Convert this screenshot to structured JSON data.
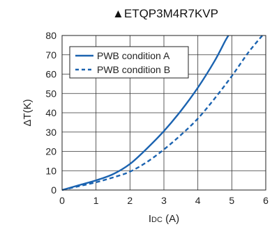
{
  "chart_data": {
    "type": "line",
    "title": "▲ETQP3M4R7KVP",
    "xlabel": "IDC (A)",
    "xlabel_parts": {
      "main": "I",
      "sub": "DC",
      "unit": " (A)"
    },
    "ylabel": "ΔT(K)",
    "xlim": [
      0,
      6
    ],
    "ylim": [
      0,
      80
    ],
    "xticks": [
      0,
      1,
      2,
      3,
      4,
      5,
      6
    ],
    "yticks": [
      0,
      10,
      20,
      30,
      40,
      50,
      60,
      70,
      80
    ],
    "grid": true,
    "legend_position": "top-left",
    "series": [
      {
        "name": "PWB condition A",
        "style": "solid",
        "color": "#1b63b0",
        "points": [
          [
            0,
            0
          ],
          [
            0.5,
            2.5
          ],
          [
            1,
            5
          ],
          [
            1.5,
            8.2
          ],
          [
            2,
            13.5
          ],
          [
            2.5,
            21.5
          ],
          [
            3,
            30.5
          ],
          [
            3.5,
            41
          ],
          [
            4,
            53
          ],
          [
            4.5,
            67
          ],
          [
            4.8,
            77
          ],
          [
            4.9,
            80
          ]
        ]
      },
      {
        "name": "PWB condition B",
        "style": "dashed",
        "color": "#1b63b0",
        "points": [
          [
            0,
            0
          ],
          [
            0.5,
            2
          ],
          [
            1,
            4
          ],
          [
            1.5,
            6.5
          ],
          [
            2,
            9.5
          ],
          [
            2.5,
            14.5
          ],
          [
            3,
            21
          ],
          [
            3.5,
            28.5
          ],
          [
            4,
            37
          ],
          [
            4.5,
            47.5
          ],
          [
            5,
            59
          ],
          [
            5.5,
            71.5
          ],
          [
            5.9,
            80
          ]
        ]
      }
    ]
  }
}
